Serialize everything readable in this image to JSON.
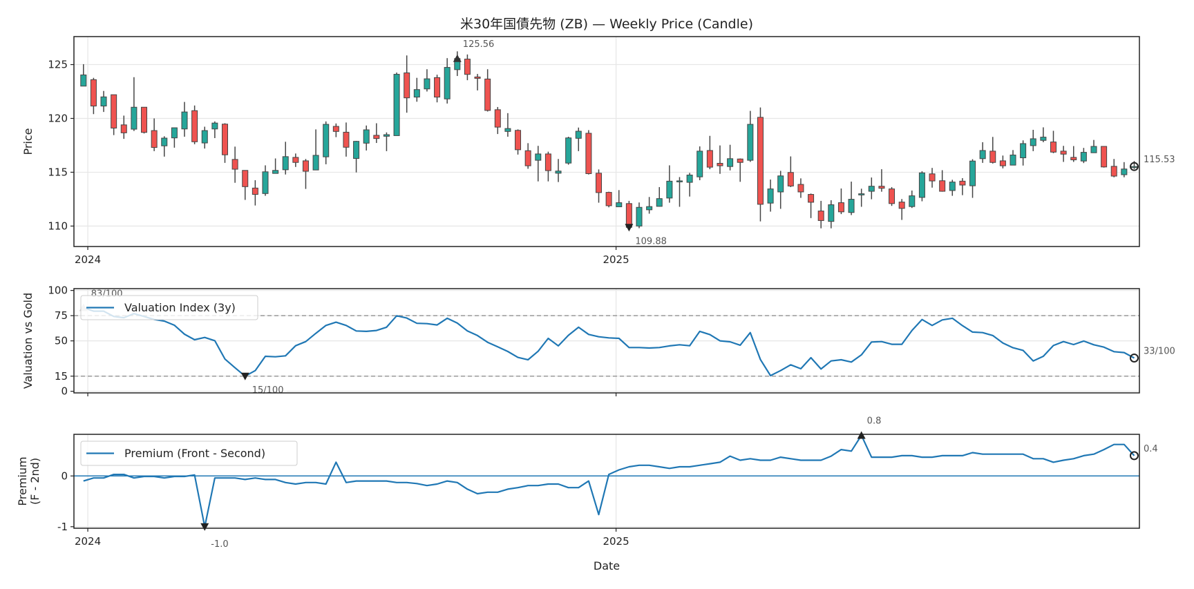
{
  "title": "米30年国債先物 (ZB) — Weekly Price (Candle)",
  "x_label": "Date",
  "chart_data": [
    {
      "type": "candlestick",
      "title": "米30年国債先物 (ZB) — Weekly Price (Candle)",
      "ylabel": "Price",
      "ylim": [
        108.1,
        127.6
      ],
      "yticks": [
        110,
        115,
        120,
        125
      ],
      "xticks": [
        {
          "date": "2024-01-01",
          "label": "2024"
        },
        {
          "date": "2025-01-01",
          "label": "2025"
        }
      ],
      "grid": true,
      "colors": {
        "up": "#26a69a",
        "down": "#ef5350",
        "edge": "#444444"
      },
      "dates": [
        "2023-12-29",
        "2024-01-05",
        "2024-01-12",
        "2024-01-19",
        "2024-01-26",
        "2024-02-02",
        "2024-02-09",
        "2024-02-16",
        "2024-02-23",
        "2024-03-01",
        "2024-03-08",
        "2024-03-15",
        "2024-03-22",
        "2024-03-29",
        "2024-04-05",
        "2024-04-12",
        "2024-04-19",
        "2024-04-26",
        "2024-05-03",
        "2024-05-10",
        "2024-05-17",
        "2024-05-24",
        "2024-05-31",
        "2024-06-07",
        "2024-06-14",
        "2024-06-21",
        "2024-06-28",
        "2024-07-05",
        "2024-07-12",
        "2024-07-19",
        "2024-07-26",
        "2024-08-02",
        "2024-08-09",
        "2024-08-16",
        "2024-08-23",
        "2024-08-30",
        "2024-09-06",
        "2024-09-13",
        "2024-09-20",
        "2024-09-27",
        "2024-10-04",
        "2024-10-11",
        "2024-10-18",
        "2024-10-25",
        "2024-11-01",
        "2024-11-08",
        "2024-11-15",
        "2024-11-22",
        "2024-11-29",
        "2024-12-06",
        "2024-12-13",
        "2024-12-20",
        "2024-12-27",
        "2025-01-03",
        "2025-01-10",
        "2025-01-17",
        "2025-01-24",
        "2025-01-31",
        "2025-02-07",
        "2025-02-14",
        "2025-02-21",
        "2025-02-28",
        "2025-03-07",
        "2025-03-14",
        "2025-03-21",
        "2025-03-28",
        "2025-04-04",
        "2025-04-11",
        "2025-04-18",
        "2025-04-25",
        "2025-05-02",
        "2025-05-09",
        "2025-05-16",
        "2025-05-23",
        "2025-05-30",
        "2025-06-06",
        "2025-06-13",
        "2025-06-20",
        "2025-06-27",
        "2025-07-04",
        "2025-07-11",
        "2025-07-18",
        "2025-07-25",
        "2025-08-01",
        "2025-08-08",
        "2025-08-15",
        "2025-08-22",
        "2025-08-29",
        "2025-09-05",
        "2025-09-12",
        "2025-09-19",
        "2025-09-26",
        "2025-10-03",
        "2025-10-10",
        "2025-10-17",
        "2025-10-24",
        "2025-10-31",
        "2025-11-07",
        "2025-11-14",
        "2025-11-21",
        "2025-11-28",
        "2025-12-05",
        "2025-12-12",
        "2025-12-19",
        "2025-12-26"
      ],
      "ohlc_columns": [
        "open",
        "high",
        "low",
        "close"
      ],
      "ohlc": [
        [
          123.0,
          125.04,
          123.0,
          124.04
        ],
        [
          123.6,
          123.77,
          120.4,
          121.15
        ],
        [
          121.15,
          122.55,
          120.6,
          122.0
        ],
        [
          122.2,
          122.2,
          118.45,
          119.1
        ],
        [
          119.4,
          120.26,
          118.1,
          118.66
        ],
        [
          119.0,
          123.83,
          118.83,
          121.04
        ],
        [
          121.04,
          121.04,
          118.6,
          118.7
        ],
        [
          118.87,
          120.0,
          116.96,
          117.3
        ],
        [
          117.45,
          118.34,
          116.45,
          118.17
        ],
        [
          118.19,
          119.13,
          117.28,
          119.13
        ],
        [
          119.02,
          121.53,
          118.3,
          120.6
        ],
        [
          120.72,
          121.2,
          117.6,
          117.83
        ],
        [
          117.72,
          119.23,
          117.2,
          118.87
        ],
        [
          119.02,
          119.72,
          118.17,
          119.57
        ],
        [
          119.47,
          119.55,
          115.87,
          116.62
        ],
        [
          116.19,
          117.38,
          114.02,
          115.28
        ],
        [
          115.17,
          115.17,
          112.43,
          113.66
        ],
        [
          113.53,
          114.26,
          111.91,
          112.94
        ],
        [
          113.02,
          115.64,
          112.81,
          115.04
        ],
        [
          114.89,
          116.28,
          114.89,
          115.17
        ],
        [
          115.23,
          117.83,
          114.79,
          116.45
        ],
        [
          116.38,
          116.74,
          115.49,
          115.91
        ],
        [
          116.06,
          116.23,
          113.45,
          115.09
        ],
        [
          115.21,
          118.98,
          115.21,
          116.57
        ],
        [
          116.43,
          119.72,
          115.74,
          119.45
        ],
        [
          119.26,
          119.53,
          118.26,
          118.79
        ],
        [
          118.72,
          119.62,
          116.45,
          117.32
        ],
        [
          116.28,
          117.91,
          114.98,
          117.87
        ],
        [
          117.7,
          119.34,
          117.02,
          118.94
        ],
        [
          118.43,
          119.55,
          117.72,
          118.13
        ],
        [
          118.34,
          118.7,
          116.96,
          118.49
        ],
        [
          118.4,
          124.26,
          118.4,
          124.1
        ],
        [
          124.23,
          125.85,
          120.53,
          121.91
        ],
        [
          121.98,
          123.77,
          121.55,
          122.68
        ],
        [
          122.74,
          124.57,
          122.5,
          123.68
        ],
        [
          123.79,
          124.06,
          121.49,
          121.98
        ],
        [
          121.81,
          125.6,
          121.38,
          124.74
        ],
        [
          124.53,
          126.23,
          123.94,
          125.56
        ],
        [
          125.51,
          125.94,
          123.55,
          124.09
        ],
        [
          123.85,
          124.13,
          122.6,
          123.72
        ],
        [
          123.66,
          124.57,
          120.64,
          120.74
        ],
        [
          120.81,
          121.06,
          118.55,
          119.19
        ],
        [
          118.79,
          120.49,
          118.3,
          119.06
        ],
        [
          118.89,
          118.98,
          116.64,
          117.09
        ],
        [
          117.0,
          117.7,
          115.32,
          115.6
        ],
        [
          116.11,
          117.45,
          114.15,
          116.7
        ],
        [
          116.7,
          116.91,
          114.15,
          115.15
        ],
        [
          114.91,
          116.23,
          114.09,
          115.11
        ],
        [
          115.85,
          118.3,
          115.7,
          118.19
        ],
        [
          118.15,
          119.15,
          116.96,
          118.81
        ],
        [
          118.62,
          118.91,
          114.79,
          114.87
        ],
        [
          114.91,
          115.26,
          112.17,
          113.11
        ],
        [
          113.13,
          113.19,
          111.74,
          111.89
        ],
        [
          111.79,
          113.34,
          111.79,
          112.17
        ],
        [
          112.09,
          112.34,
          109.79,
          109.88
        ],
        [
          110.0,
          112.19,
          109.8,
          111.74
        ],
        [
          111.51,
          112.7,
          111.15,
          111.81
        ],
        [
          111.83,
          113.62,
          111.81,
          112.55
        ],
        [
          112.6,
          115.64,
          112.17,
          114.17
        ],
        [
          114.13,
          114.55,
          111.79,
          114.2
        ],
        [
          114.06,
          114.94,
          112.74,
          114.74
        ],
        [
          114.57,
          117.4,
          114.26,
          116.96
        ],
        [
          117.02,
          118.38,
          115.28,
          115.47
        ],
        [
          115.83,
          117.49,
          114.85,
          115.6
        ],
        [
          115.53,
          117.55,
          115.17,
          116.26
        ],
        [
          116.23,
          116.28,
          114.11,
          115.91
        ],
        [
          116.11,
          120.7,
          115.96,
          119.45
        ],
        [
          120.1,
          121.02,
          110.43,
          112.02
        ],
        [
          112.13,
          114.32,
          111.34,
          113.45
        ],
        [
          113.17,
          115.13,
          111.6,
          114.66
        ],
        [
          114.98,
          116.47,
          113.62,
          113.72
        ],
        [
          113.87,
          114.43,
          112.62,
          113.17
        ],
        [
          112.94,
          113.02,
          110.74,
          112.21
        ],
        [
          111.4,
          112.34,
          109.79,
          110.51
        ],
        [
          110.43,
          112.4,
          109.79,
          111.98
        ],
        [
          112.17,
          113.49,
          111.11,
          111.32
        ],
        [
          111.26,
          114.13,
          111.02,
          112.49
        ],
        [
          112.89,
          113.47,
          111.79,
          113.0
        ],
        [
          113.23,
          114.51,
          112.49,
          113.7
        ],
        [
          113.7,
          115.28,
          113.19,
          113.51
        ],
        [
          113.45,
          113.62,
          111.87,
          112.09
        ],
        [
          112.23,
          112.51,
          110.57,
          111.64
        ],
        [
          111.81,
          113.3,
          111.68,
          112.81
        ],
        [
          112.66,
          115.09,
          112.3,
          114.94
        ],
        [
          114.85,
          115.4,
          113.57,
          114.19
        ],
        [
          114.21,
          115.19,
          113.19,
          113.23
        ],
        [
          113.3,
          114.3,
          112.81,
          114.09
        ],
        [
          114.17,
          114.45,
          112.87,
          113.81
        ],
        [
          113.74,
          116.21,
          112.62,
          116.04
        ],
        [
          116.26,
          117.79,
          115.87,
          117.02
        ],
        [
          116.96,
          118.28,
          115.81,
          115.91
        ],
        [
          116.06,
          116.55,
          115.36,
          115.6
        ],
        [
          115.66,
          117.06,
          115.64,
          116.6
        ],
        [
          116.34,
          117.96,
          115.62,
          117.66
        ],
        [
          117.47,
          118.94,
          116.96,
          118.11
        ],
        [
          117.96,
          119.17,
          117.79,
          118.26
        ],
        [
          117.81,
          118.85,
          116.77,
          116.87
        ],
        [
          116.96,
          117.45,
          115.96,
          116.68
        ],
        [
          116.38,
          117.43,
          115.96,
          116.15
        ],
        [
          116.04,
          117.26,
          115.85,
          116.85
        ],
        [
          116.81,
          118.0,
          116.79,
          117.4
        ],
        [
          117.4,
          117.4,
          115.43,
          115.49
        ],
        [
          115.55,
          116.23,
          114.53,
          114.64
        ],
        [
          114.77,
          115.94,
          114.53,
          115.3
        ],
        [
          115.43,
          116.04,
          115.3,
          115.53
        ]
      ],
      "annotations": {
        "max": "125.56",
        "min": "109.88",
        "last": "115.53"
      }
    },
    {
      "type": "line",
      "ylabel": "Valuation vs Gold",
      "ylim": [
        -1.6,
        101.8
      ],
      "yticks": [
        0,
        15,
        50,
        75,
        100
      ],
      "reference_lines": [
        15,
        75
      ],
      "grid": true,
      "legend": "upper-left",
      "series": [
        {
          "name": "Valuation Index (3y)",
          "color": "#1f77b4",
          "values": [
            83,
            79.5,
            79.5,
            74.2,
            73,
            77,
            74.2,
            71.2,
            69.6,
            65.5,
            56.6,
            51.1,
            53.4,
            50.2,
            32,
            23.3,
            15,
            20.5,
            34.7,
            34.2,
            35.2,
            45.2,
            49.3,
            57.5,
            65.3,
            68.5,
            65.3,
            59.8,
            59.4,
            60.3,
            63.5,
            74.9,
            72.6,
            67.4,
            67.1,
            65.8,
            72.4,
            67.6,
            59.8,
            55.3,
            48.6,
            44.1,
            39.5,
            33.6,
            31.3,
            39.7,
            52.5,
            45,
            55.5,
            63.5,
            56.4,
            54.1,
            53,
            52.5,
            43.4,
            43.4,
            42.9,
            43.4,
            45,
            46.1,
            45.2,
            59.4,
            56.2,
            50,
            49.1,
            45.7,
            58.2,
            31.5,
            15.5,
            20.5,
            26.3,
            22.4,
            33.3,
            22.1,
            30.1,
            31.3,
            29,
            36.1,
            48.9,
            49.3,
            46.6,
            46.6,
            60.3,
            71.2,
            65.3,
            70.8,
            72.4,
            65.1,
            58.7,
            58.2,
            55.3,
            47.9,
            43.2,
            40.6,
            30.1,
            34.7,
            45.4,
            49.3,
            46.3,
            49.8,
            46.1,
            43.8,
            39.3,
            38.4,
            33
          ]
        }
      ],
      "annotations": {
        "max": "83/100",
        "min": "15/100",
        "last": "33/100"
      }
    },
    {
      "type": "line",
      "ylabel_lines": [
        "Premium",
        "(F - 2nd)"
      ],
      "xlabel": "Date",
      "ylim": [
        -1.03,
        0.82
      ],
      "yticks": [
        -1,
        0
      ],
      "xticks": [
        {
          "date": "2024-01-01",
          "label": "2024"
        },
        {
          "date": "2025-01-01",
          "label": "2025"
        }
      ],
      "reference_lines": [
        0
      ],
      "grid": true,
      "legend": "upper-left",
      "series": [
        {
          "name": "Premium (Front - Second)",
          "color": "#1f77b4",
          "values": [
            -0.1,
            -0.04,
            -0.04,
            0.03,
            0.03,
            -0.04,
            -0.01,
            -0.01,
            -0.04,
            -0.01,
            -0.01,
            0.02,
            -1.0,
            -0.04,
            -0.04,
            -0.04,
            -0.07,
            -0.04,
            -0.07,
            -0.07,
            -0.13,
            -0.16,
            -0.13,
            -0.13,
            -0.16,
            0.27,
            -0.13,
            -0.1,
            -0.1,
            -0.1,
            -0.1,
            -0.13,
            -0.13,
            -0.15,
            -0.19,
            -0.16,
            -0.1,
            -0.13,
            -0.26,
            -0.35,
            -0.32,
            -0.32,
            -0.26,
            -0.23,
            -0.19,
            -0.19,
            -0.16,
            -0.16,
            -0.23,
            -0.23,
            -0.1,
            -0.76,
            0.03,
            0.12,
            0.18,
            0.21,
            0.21,
            0.18,
            0.15,
            0.18,
            0.18,
            0.21,
            0.24,
            0.27,
            0.39,
            0.31,
            0.34,
            0.31,
            0.31,
            0.37,
            0.34,
            0.31,
            0.31,
            0.31,
            0.39,
            0.52,
            0.49,
            0.8,
            0.37,
            0.37,
            0.37,
            0.4,
            0.4,
            0.37,
            0.37,
            0.4,
            0.4,
            0.4,
            0.46,
            0.43,
            0.43,
            0.43,
            0.43,
            0.43,
            0.34,
            0.34,
            0.27,
            0.31,
            0.34,
            0.4,
            0.43,
            0.52,
            0.62,
            0.62,
            0.4
          ]
        }
      ],
      "annotations": {
        "max": "0.8",
        "min": "-1.0",
        "last": "0.4"
      }
    }
  ]
}
